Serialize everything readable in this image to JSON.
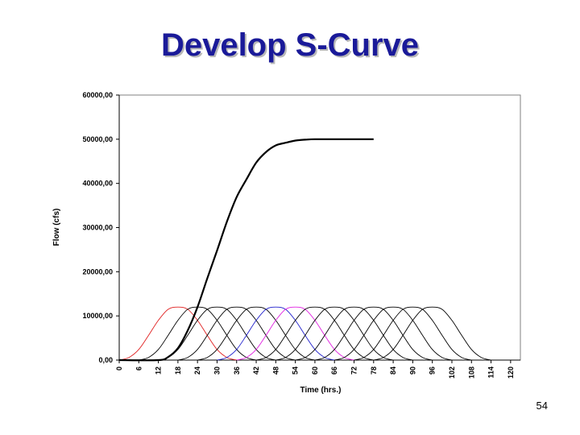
{
  "slide": {
    "title": "Develop S-Curve",
    "page_number": "54"
  },
  "chart_data": {
    "type": "line",
    "xlabel": "Time (hrs.)",
    "ylabel": "Flow (cfs)",
    "xlim": [
      0,
      123
    ],
    "ylim": [
      0,
      60000
    ],
    "x_ticks": [
      "0",
      "6",
      "12",
      "18",
      "24",
      "30",
      "36",
      "42",
      "48",
      "54",
      "60",
      "66",
      "72",
      "78",
      "84",
      "90",
      "96",
      "102",
      "108",
      "114",
      "120"
    ],
    "y_ticks": [
      "0,00",
      "10000,00",
      "20000,00",
      "30000,00",
      "40000,00",
      "50000,00",
      "60000,00"
    ],
    "grid": false,
    "colors": {
      "s_curve": "#000000",
      "red": "#e02020",
      "blue": "#2020cc",
      "magenta": "#e020e0",
      "black": "#000000"
    },
    "hydrograph_shape": {
      "x": [
        0,
        3,
        6,
        9,
        12,
        15,
        18,
        21,
        24
      ],
      "y": [
        0,
        600,
        2400,
        5600,
        9000,
        11500,
        12000,
        11500,
        9000
      ]
    },
    "series": [
      {
        "start": 0,
        "color": "red"
      },
      {
        "start": 6,
        "color": "black"
      },
      {
        "start": 12,
        "color": "black"
      },
      {
        "start": 18,
        "color": "black"
      },
      {
        "start": 24,
        "color": "black"
      },
      {
        "start": 30,
        "color": "blue"
      },
      {
        "start": 36,
        "color": "magenta"
      },
      {
        "start": 42,
        "color": "black"
      },
      {
        "start": 48,
        "color": "black"
      },
      {
        "start": 54,
        "color": "black"
      },
      {
        "start": 60,
        "color": "black"
      },
      {
        "start": 66,
        "color": "black"
      },
      {
        "start": 72,
        "color": "black"
      },
      {
        "start": 78,
        "color": "black"
      }
    ],
    "s_curve": {
      "x": [
        0,
        12,
        15,
        18,
        21,
        24,
        27,
        30,
        33,
        36,
        39,
        42,
        45,
        48,
        51,
        54,
        57,
        60,
        63,
        66,
        69,
        72,
        75,
        78
      ],
      "y": [
        0,
        0,
        700,
        2700,
        6700,
        12000,
        18500,
        24800,
        31300,
        36900,
        40900,
        44700,
        47100,
        48600,
        49200,
        49700,
        49900,
        50000,
        50000,
        50000,
        50000,
        50000,
        50000,
        50000
      ]
    }
  }
}
